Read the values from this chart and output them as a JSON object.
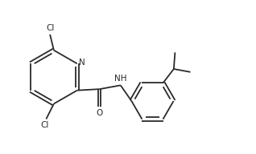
{
  "bg_color": "#ffffff",
  "bond_color": "#2a2a2a",
  "atom_color": "#2a2a2a",
  "line_width": 1.3,
  "font_size": 7.5,
  "figsize": [
    3.18,
    1.92
  ],
  "dpi": 100,
  "xlim": [
    0.0,
    9.5
  ],
  "ylim": [
    0.5,
    6.5
  ]
}
